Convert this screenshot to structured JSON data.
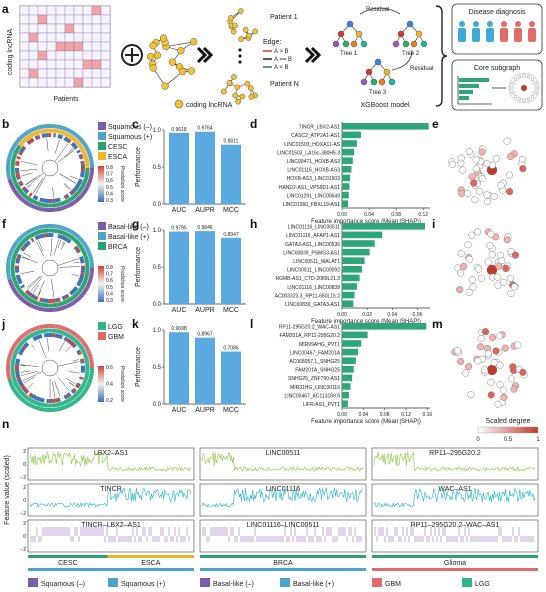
{
  "colors": {
    "bar": "#5aa9e0",
    "hbar": "#2fa57a",
    "lncRed": "#d33a2c",
    "lncBlue": "#2b6cb0",
    "squamousNeg": "#7b5aa6",
    "squamousPos": "#4ba3c7",
    "cesc": "#27a36b",
    "esca": "#f0b429",
    "gbm": "#e06b6b",
    "lgg": "#2fb58a",
    "trackA": "#8cc63f",
    "trackB": "#1fb5c0",
    "trackC": "#9b74c0"
  },
  "panelA": {
    "letter": "a",
    "matrixYLabel": "coding lncRNA",
    "matrixXLabel": "Patients",
    "networkLabel": "coding lncRNA",
    "patient1": "Patient 1",
    "patientN": "Patient N",
    "edgeTitle": "Edge:",
    "edgeItems": [
      "A > B",
      "A == B",
      "A < B"
    ],
    "residual1": "Residual",
    "residual2": "Residual",
    "tree1": "Tree 1",
    "tree2": "Tree 2",
    "tree3": "Tree 3",
    "modelLabel": "XGBoost model",
    "output1": "Disease diagnosis",
    "output2": "Core subgraph"
  },
  "rows": [
    {
      "key": "b",
      "letters": {
        "tree": "b",
        "bar": "c",
        "imp": "d",
        "net": "e"
      },
      "legend": [
        {
          "label": "Squamous (–)",
          "color": "#7b5aa6"
        },
        {
          "label": "Squamous (+)",
          "color": "#4ba3c7"
        },
        {
          "label": "CESC",
          "color": "#27a36b"
        },
        {
          "label": "ESCA",
          "color": "#f0b429"
        }
      ],
      "colorbarTicks": [
        "0.8",
        "0.7",
        "0.6",
        "0.5",
        "0.4",
        "0.3"
      ],
      "colorbarLabel": "Prediction score",
      "bars": {
        "ylabel": "Performance",
        "yticks": [
          "0.0",
          "0.5",
          "1.0"
        ],
        "categories": [
          "AUC",
          "AUPR",
          "MCC"
        ],
        "values": [
          0.9618,
          0.9764,
          0.8011
        ],
        "labels": [
          "0.9618",
          "0.9764",
          "0.8011"
        ]
      },
      "importance": {
        "xlabel": "Feature importance score (Mean |SHAP|)",
        "xticks": [
          "0.00",
          "0.04",
          "0.08",
          "0.12"
        ],
        "xmax": 0.13,
        "features": [
          {
            "label": "TINCR_LBX2-AS1",
            "value": 0.128,
            "color": "#d33a2c"
          },
          {
            "label": "CASC2_ATP2A1-AS1",
            "value": 0.028,
            "color": "#d33a2c"
          },
          {
            "label": "LINC01503_HOXA11-AS",
            "value": 0.022,
            "color": "#d33a2c"
          },
          {
            "label": "LINC01503_LA16c-380H5.3",
            "value": 0.018,
            "color": "#d33a2c"
          },
          {
            "label": "LINC00471_HOXB-AS3",
            "value": 0.016,
            "color": "#d33a2c"
          },
          {
            "label": "LINC01116_HOXB-AS3",
            "value": 0.014,
            "color": "#d33a2c"
          },
          {
            "label": "HOXB-AS3_LINC01503",
            "value": 0.012,
            "color": "#2b6cb0"
          },
          {
            "label": "HAND2-AS1_VPS9D1-AS1",
            "value": 0.011,
            "color": "#d33a2c"
          },
          {
            "label": "LINC01291_LINC00649",
            "value": 0.01,
            "color": "#d33a2c"
          },
          {
            "label": "LINC01560_FBXL19-AS1",
            "value": 0.009,
            "color": "#d33a2c"
          }
        ]
      },
      "netLetter": "e"
    },
    {
      "key": "f",
      "letters": {
        "tree": "f",
        "bar": "g",
        "imp": "h",
        "net": "i"
      },
      "legend": [
        {
          "label": "Basal-like (–)",
          "color": "#7b5aa6"
        },
        {
          "label": "Basal-like (+)",
          "color": "#4ba3c7"
        },
        {
          "label": "BRCA",
          "color": "#27a36b"
        }
      ],
      "colorbarTicks": [
        "0.8",
        "0.7",
        "0.6",
        "0.5",
        "0.4",
        "0.3"
      ],
      "colorbarLabel": "Prediction score",
      "bars": {
        "ylabel": "Performance",
        "yticks": [
          "0.0",
          "0.5",
          "1.0"
        ],
        "categories": [
          "AUC",
          "AUPR",
          "MCC"
        ],
        "values": [
          0.9795,
          0.9846,
          0.8947
        ],
        "labels": [
          "0.9795",
          "0.9846",
          "0.8947"
        ]
      },
      "importance": {
        "xlabel": "Feature importance score (Mean |SHAP|)",
        "xticks": [
          "0.00",
          "0.02",
          "0.04",
          "0.06"
        ],
        "xmax": 0.07,
        "features": [
          {
            "label": "LINC01116_LINC00511",
            "value": 0.066,
            "color": "#d33a2c"
          },
          {
            "label": "LINC01116_AFAP1-AS1",
            "value": 0.032,
            "color": "#d33a2c"
          },
          {
            "label": "GATA3-AS1_LINC00536",
            "value": 0.026,
            "color": "#d33a2c"
          },
          {
            "label": "LINC00839_PSMG3-AS1",
            "value": 0.022,
            "color": "#d33a2c"
          },
          {
            "label": "LINC00511_MALAT1",
            "value": 0.018,
            "color": "#d33a2c"
          },
          {
            "label": "LINC00511_LINC00092",
            "value": 0.016,
            "color": "#d33a2c"
          },
          {
            "label": "RGMB-AS1_CTD-2089L21.3",
            "value": 0.014,
            "color": "#2b6cb0"
          },
          {
            "label": "LINC01116_LINC00839",
            "value": 0.012,
            "color": "#d33a2c"
          },
          {
            "label": "AC003323.3_RP11-660L16.2",
            "value": 0.01,
            "color": "#2b6cb0"
          },
          {
            "label": "LINC00839_GATA3-AS1",
            "value": 0.009,
            "color": "#d33a2c"
          }
        ]
      },
      "netLetter": "i"
    },
    {
      "key": "j",
      "letters": {
        "tree": "j",
        "bar": "k",
        "imp": "l",
        "net": "m"
      },
      "legend": [
        {
          "label": "LGG",
          "color": "#2fb58a"
        },
        {
          "label": "GBM",
          "color": "#e06b6b"
        }
      ],
      "colorbarTicks": [
        "0.6",
        "0.4",
        "0.2"
      ],
      "colorbarLabel": "Prediction score",
      "bars": {
        "ylabel": "Performance",
        "yticks": [
          "0.0",
          "0.5",
          "1.0"
        ],
        "categories": [
          "AUC",
          "AUPR",
          "MCC"
        ],
        "values": [
          0.9698,
          0.8967,
          0.7086
        ],
        "labels": [
          "0.9698",
          "0.8967",
          "0.7086"
        ]
      },
      "importance": {
        "xlabel": "Feature importance score (Mean |SHAP|)",
        "xticks": [
          "0.00",
          "0.04",
          "0.08",
          "0.12",
          "0.16"
        ],
        "xmax": 0.165,
        "features": [
          {
            "label": "RP11-295G20.2_WAC-AS1",
            "value": 0.158,
            "color": "#d33a2c"
          },
          {
            "label": "FAM201A_RP11-295G20.2",
            "value": 0.048,
            "color": "#d33a2c"
          },
          {
            "label": "MIR99AHG_PVT1",
            "value": 0.036,
            "color": "#d33a2c"
          },
          {
            "label": "LINC00467_FAM201A",
            "value": 0.03,
            "color": "#d33a2c"
          },
          {
            "label": "AC068057.1_SNHG25",
            "value": 0.026,
            "color": "#2b6cb0"
          },
          {
            "label": "FAM201A_SNHG25",
            "value": 0.022,
            "color": "#d33a2c"
          },
          {
            "label": "SNHG25_ZNF790-AS1",
            "value": 0.019,
            "color": "#d33a2c"
          },
          {
            "label": "MIR31HG_LINC00115",
            "value": 0.016,
            "color": "#d33a2c"
          },
          {
            "label": "LINC00467_AC113189.5",
            "value": 0.013,
            "color": "#d33a2c"
          },
          {
            "label": "LIFR-AS1_PVT1",
            "value": 0.011,
            "color": "#d33a2c"
          }
        ]
      },
      "netLetter": "m"
    }
  ],
  "netLegend": {
    "title": "Scaled degree",
    "ticks": [
      "0",
      "0.5",
      "1"
    ]
  },
  "panelN": {
    "letter": "n",
    "ylabel": "Feature value (scaled)",
    "columns": [
      {
        "tracks": [
          "LBX2–AS1",
          "TINCR",
          "TINCR–LBX2–AS1"
        ],
        "groups": [
          {
            "label": "CESC",
            "color": "#27a36b"
          },
          {
            "label": "ESCA",
            "color": "#f0b429"
          }
        ],
        "split": 0.48
      },
      {
        "tracks": [
          "LINC00511",
          "LINC01116",
          "LINC01116–LINC00511"
        ],
        "groups": [
          {
            "label": "BRCA",
            "color": "#27a36b"
          }
        ],
        "split": 0.2
      },
      {
        "tracks": [
          "RP11–295G20.2",
          "WAC–AS1",
          "RP11–295G20.2–WAC–AS1"
        ],
        "groups": [
          {
            "label": "Glioma",
            "color": "#27a36b"
          }
        ],
        "split": 0.25
      }
    ],
    "yticks": [
      "2",
      "1",
      "0",
      "−1",
      "−2"
    ],
    "legend": [
      {
        "label": "Squamous (–)",
        "color": "#7b5aa6"
      },
      {
        "label": "Squamous (+)",
        "color": "#4ba3c7"
      },
      {
        "label": "Basal-like (–)",
        "color": "#7b5aa6"
      },
      {
        "label": "Basal-like (+)",
        "color": "#4ba3c7"
      },
      {
        "label": "GBM",
        "color": "#e06b6b"
      },
      {
        "label": "LGG",
        "color": "#2fb58a"
      }
    ]
  },
  "chart_data": [
    {
      "type": "bar",
      "panel": "c",
      "categories": [
        "AUC",
        "AUPR",
        "MCC"
      ],
      "values": [
        0.9618,
        0.9764,
        0.8011
      ],
      "ylabel": "Performance",
      "ylim": [
        0,
        1.0
      ]
    },
    {
      "type": "bar",
      "panel": "g",
      "categories": [
        "AUC",
        "AUPR",
        "MCC"
      ],
      "values": [
        0.9795,
        0.9846,
        0.8947
      ],
      "ylabel": "Performance",
      "ylim": [
        0,
        1.0
      ]
    },
    {
      "type": "bar",
      "panel": "k",
      "categories": [
        "AUC",
        "AUPR",
        "MCC"
      ],
      "values": [
        0.9698,
        0.8967,
        0.7086
      ],
      "ylabel": "Performance",
      "ylim": [
        0,
        1.0
      ]
    },
    {
      "type": "bar",
      "panel": "d",
      "orientation": "horizontal",
      "xlabel": "Feature importance score (Mean |SHAP|)",
      "categories": [
        "TINCR_LBX2-AS1",
        "CASC2_ATP2A1-AS1",
        "LINC01503_HOXA11-AS",
        "LINC01503_LA16c-380H5.3",
        "LINC00471_HOXB-AS3",
        "LINC01116_HOXB-AS3",
        "HOXB-AS3_LINC01503",
        "HAND2-AS1_VPS9D1-AS1",
        "LINC01291_LINC00649",
        "LINC01560_FBXL19-AS1"
      ],
      "values": [
        0.128,
        0.028,
        0.022,
        0.018,
        0.016,
        0.014,
        0.012,
        0.011,
        0.01,
        0.009
      ]
    },
    {
      "type": "bar",
      "panel": "h",
      "orientation": "horizontal",
      "xlabel": "Feature importance score (Mean |SHAP|)",
      "categories": [
        "LINC01116_LINC00511",
        "LINC01116_AFAP1-AS1",
        "GATA3-AS1_LINC00536",
        "LINC00839_PSMG3-AS1",
        "LINC00511_MALAT1",
        "LINC00511_LINC00092",
        "RGMB-AS1_CTD-2089L21.3",
        "LINC01116_LINC00839",
        "AC003323.3_RP11-660L16.2",
        "LINC00839_GATA3-AS1"
      ],
      "values": [
        0.066,
        0.032,
        0.026,
        0.022,
        0.018,
        0.016,
        0.014,
        0.012,
        0.01,
        0.009
      ]
    },
    {
      "type": "bar",
      "panel": "l",
      "orientation": "horizontal",
      "xlabel": "Feature importance score (Mean |SHAP|)",
      "categories": [
        "RP11-295G20.2_WAC-AS1",
        "FAM201A_RP11-295G20.2",
        "MIR99AHG_PVT1",
        "LINC00467_FAM201A",
        "AC068057.1_SNHG25",
        "FAM201A_SNHG25",
        "SNHG25_ZNF790-AS1",
        "MIR31HG_LINC00115",
        "LINC00467_AC113189.5",
        "LIFR-AS1_PVT1"
      ],
      "values": [
        0.158,
        0.048,
        0.036,
        0.03,
        0.026,
        0.022,
        0.019,
        0.016,
        0.013,
        0.011
      ]
    }
  ]
}
